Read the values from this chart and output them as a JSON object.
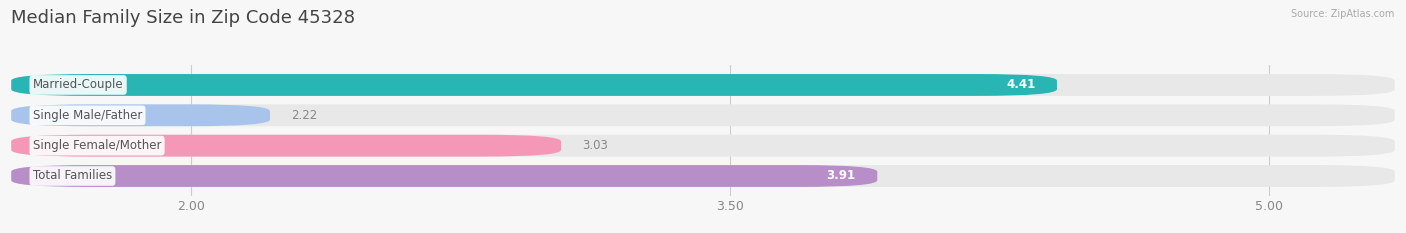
{
  "title": "Median Family Size in Zip Code 45328",
  "source": "Source: ZipAtlas.com",
  "categories": [
    "Married-Couple",
    "Single Male/Father",
    "Single Female/Mother",
    "Total Families"
  ],
  "values": [
    4.41,
    2.22,
    3.03,
    3.91
  ],
  "bar_colors": [
    "#2ab5b5",
    "#a8c4ea",
    "#f598b8",
    "#b88ec8"
  ],
  "track_color": "#e8e8e8",
  "xlim_min": 1.5,
  "xlim_max": 5.35,
  "xticks": [
    2.0,
    3.5,
    5.0
  ],
  "xtick_labels": [
    "2.00",
    "3.50",
    "5.00"
  ],
  "bar_height": 0.72,
  "bar_gap": 1.0,
  "background_color": "#f7f7f7",
  "title_color": "#444444",
  "title_fontsize": 13,
  "label_fontsize": 8.5,
  "value_fontsize": 8.5,
  "tick_fontsize": 9,
  "source_fontsize": 7,
  "grid_color": "#cccccc",
  "label_text_color": "#555555",
  "long_bar_threshold": 1.8
}
